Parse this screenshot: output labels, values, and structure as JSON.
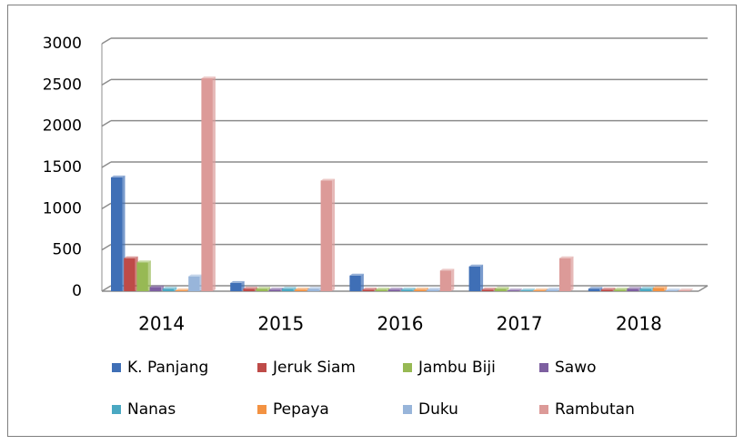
{
  "chart_data": {
    "type": "bar",
    "categories": [
      "2014",
      "2015",
      "2016",
      "2017",
      "2018"
    ],
    "series": [
      {
        "name": "K. Panjang",
        "color": "#3f6fb6",
        "values": [
          1380,
          100,
          190,
          300,
          30
        ]
      },
      {
        "name": "Jeruk Siam",
        "color": "#be4b48",
        "values": [
          400,
          30,
          20,
          20,
          20
        ]
      },
      {
        "name": "Jambu Biji",
        "color": "#97b954",
        "values": [
          350,
          30,
          20,
          30,
          20
        ]
      },
      {
        "name": "Sawo",
        "color": "#7d5fa0",
        "values": [
          50,
          20,
          20,
          10,
          30
        ]
      },
      {
        "name": "Nanas",
        "color": "#4aa8c2",
        "values": [
          30,
          30,
          20,
          10,
          30
        ]
      },
      {
        "name": "Pepaya",
        "color": "#f39242",
        "values": [
          10,
          20,
          20,
          10,
          40
        ]
      },
      {
        "name": "Duku",
        "color": "#98b5da",
        "values": [
          180,
          30,
          20,
          20,
          10
        ]
      },
      {
        "name": "Rambutan",
        "color": "#dc9a98",
        "values": [
          2580,
          1340,
          250,
          400,
          10
        ]
      }
    ],
    "ylim": [
      0,
      3000
    ],
    "yticks": [
      0,
      500,
      1000,
      1500,
      2000,
      2500,
      3000
    ],
    "grid": true,
    "legend": "bottom"
  }
}
